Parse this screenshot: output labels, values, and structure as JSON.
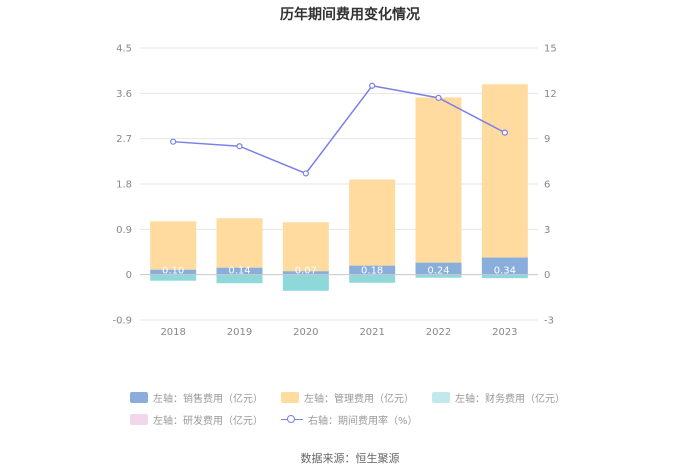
{
  "chart_data": {
    "type": "bar",
    "title": "历年期间费用变化情况",
    "categories": [
      "2018",
      "2019",
      "2020",
      "2021",
      "2022",
      "2023"
    ],
    "left_axis": {
      "ticks": [
        "4.5",
        "3.6",
        "2.7",
        "1.8",
        "0.9",
        "0",
        "-0.9"
      ],
      "ylim": [
        -0.9,
        4.5
      ]
    },
    "right_axis": {
      "ticks": [
        "15",
        "12",
        "9",
        "6",
        "3",
        "0",
        "-3"
      ],
      "ylim": [
        -3,
        15
      ]
    },
    "series": [
      {
        "name": "左轴：销售费用（亿元）",
        "key": "sales",
        "values": [
          0.1,
          0.14,
          0.07,
          0.18,
          0.24,
          0.34
        ],
        "labels": [
          "0.10",
          "0.14",
          "0.07",
          "0.18",
          "0.24",
          "0.34"
        ],
        "color": "#8aaedc"
      },
      {
        "name": "左轴：管理费用（亿元）",
        "key": "admin",
        "values": [
          0.96,
          0.98,
          0.97,
          1.71,
          3.28,
          3.44
        ],
        "color": "#ffdba0"
      },
      {
        "name": "左轴：财务费用（亿元）",
        "key": "finance",
        "values": [
          -0.12,
          -0.17,
          -0.32,
          -0.16,
          -0.06,
          -0.07
        ],
        "color": "#8ed8dc"
      },
      {
        "name": "左轴：研发费用（亿元）",
        "key": "rnd",
        "values": [
          0,
          0,
          0,
          0,
          0,
          0
        ],
        "color": "#f1d6ec"
      },
      {
        "name": "右轴：期间费用率（%）",
        "key": "rate",
        "values": [
          8.8,
          8.5,
          6.7,
          12.5,
          11.7,
          9.4
        ],
        "color": "#7b7fe9"
      }
    ],
    "source": "数据来源：恒生聚源"
  }
}
